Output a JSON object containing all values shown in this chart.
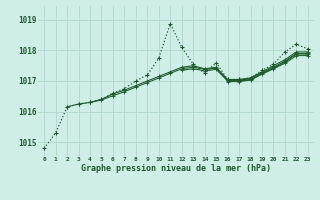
{
  "title": "Graphe pression niveau de la mer (hPa)",
  "yticks": [
    1015,
    1016,
    1017,
    1018,
    1019
  ],
  "ylim": [
    1014.55,
    1019.45
  ],
  "xlim": [
    -0.5,
    23.5
  ],
  "bg_color": "#d0eee8",
  "grid_color": "#b0d8cc",
  "line_color": "#1a5c28",
  "text_color": "#1a5c28",
  "series": [
    [
      1014.8,
      1015.3,
      1016.15,
      1016.25,
      1016.3,
      1016.4,
      1016.6,
      1016.75,
      1017.0,
      1017.2,
      1017.75,
      1018.87,
      1018.1,
      1017.55,
      1017.25,
      1017.6,
      1017.05,
      1017.05,
      1017.1,
      1017.35,
      1017.55,
      1017.95,
      1018.2,
      1018.05
    ],
    [
      null,
      null,
      1016.15,
      1016.25,
      1016.3,
      1016.4,
      1016.58,
      1016.7,
      1016.85,
      1017.0,
      1017.15,
      1017.3,
      1017.45,
      1017.5,
      1017.4,
      1017.45,
      1017.05,
      1017.05,
      1017.1,
      1017.3,
      1017.5,
      1017.7,
      1017.95,
      1017.95
    ],
    [
      null,
      null,
      null,
      null,
      1016.3,
      1016.38,
      1016.52,
      1016.65,
      1016.8,
      1016.95,
      1017.1,
      1017.25,
      1017.4,
      1017.45,
      1017.38,
      1017.42,
      1017.02,
      1017.02,
      1017.08,
      1017.28,
      1017.45,
      1017.65,
      1017.9,
      1017.9
    ],
    [
      null,
      null,
      null,
      null,
      null,
      null,
      null,
      null,
      null,
      null,
      null,
      null,
      1017.35,
      1017.4,
      1017.33,
      1017.38,
      1017.0,
      1017.0,
      1017.05,
      1017.25,
      1017.42,
      1017.62,
      1017.88,
      1017.88
    ],
    [
      null,
      null,
      null,
      null,
      null,
      null,
      null,
      null,
      null,
      null,
      null,
      null,
      null,
      null,
      null,
      null,
      1016.98,
      1016.98,
      1017.03,
      1017.22,
      1017.4,
      1017.58,
      1017.83,
      1017.83
    ]
  ]
}
